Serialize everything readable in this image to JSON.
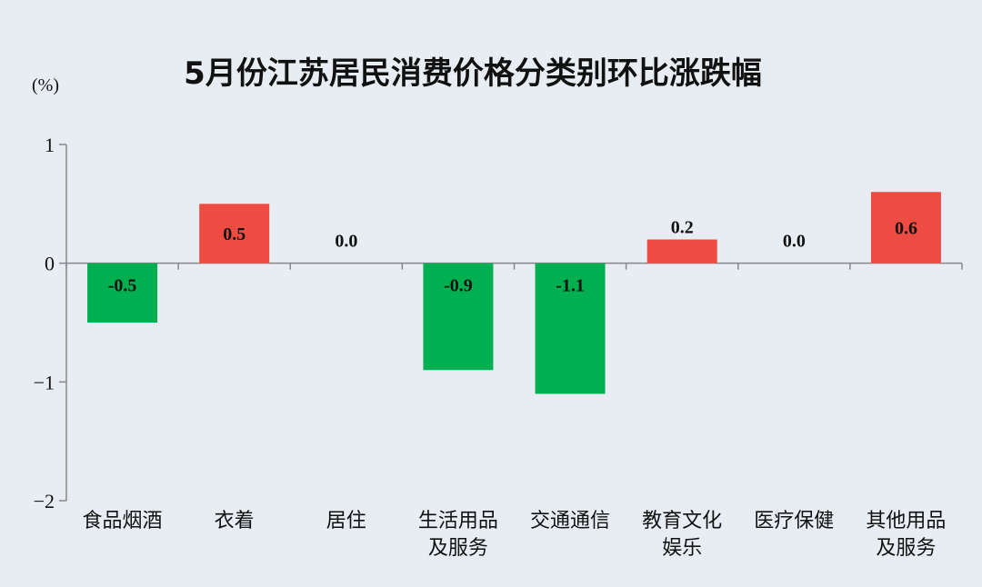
{
  "chart_data": {
    "type": "bar",
    "title": "5月份江苏居民消费价格分类别环比涨跌幅",
    "unit_label": "(%)",
    "categories": [
      [
        "食品烟酒"
      ],
      [
        "衣着"
      ],
      [
        "居住"
      ],
      [
        "生活用品",
        "及服务"
      ],
      [
        "交通通信"
      ],
      [
        "教育文化",
        "娱乐"
      ],
      [
        "医疗保健"
      ],
      [
        "其他用品",
        "及服务"
      ]
    ],
    "values": [
      -0.5,
      0.5,
      0.0,
      -0.9,
      -1.1,
      0.2,
      0.0,
      0.6
    ],
    "value_labels": [
      "-0.5",
      "0.5",
      "0.0",
      "-0.9",
      "-1.1",
      "0.2",
      "0.0",
      "0.6"
    ],
    "ylim": [
      -2,
      1
    ],
    "yticks": [
      1,
      0,
      -1,
      -2
    ],
    "ytick_labels": [
      "1",
      "0",
      "−1",
      "−2"
    ],
    "colors": {
      "positive": "#ee4c43",
      "negative": "#00b050",
      "background": "#e8ecf3",
      "axis": "#888888"
    },
    "grid": false,
    "legend": "none"
  }
}
